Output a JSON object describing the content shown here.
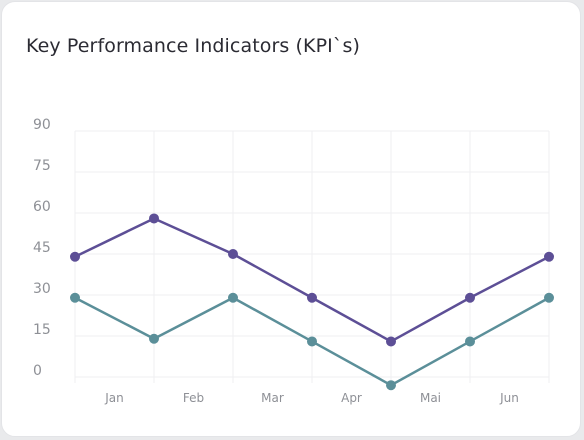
{
  "card": {
    "title": "Key Performance Indicators (KPI`s)"
  },
  "colors": {
    "series_a": "#5d4f96",
    "series_b": "#5b8f99",
    "grid": "#efeff2",
    "background": "#ffffff"
  },
  "chart_data": {
    "type": "line",
    "title": "Key Performance Indicators (KPI`s)",
    "xlabel": "",
    "ylabel": "",
    "ylim": [
      0,
      90
    ],
    "y_ticks": [
      0,
      15,
      30,
      45,
      60,
      75,
      90
    ],
    "x_tick_labels": [
      "Jan",
      "Feb",
      "Mar",
      "Apr",
      "Mai",
      "Jun"
    ],
    "grid": true,
    "legend": "none",
    "series": [
      {
        "color": "#5d4f96",
        "values": [
          44,
          58,
          45,
          29,
          13,
          29,
          44
        ]
      },
      {
        "color": "#5b8f99",
        "values": [
          29,
          14,
          29,
          13,
          -3,
          13,
          29
        ]
      }
    ]
  }
}
